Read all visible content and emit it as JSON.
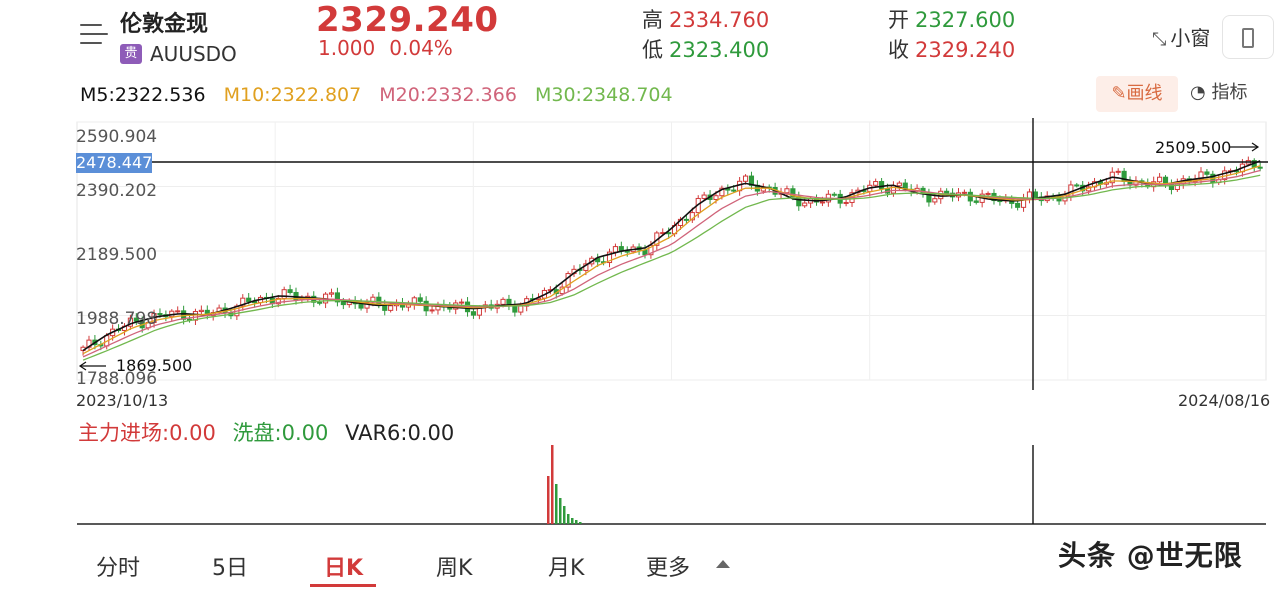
{
  "header": {
    "name": "伦敦金现",
    "badge": "贵",
    "symbol": "AUUSDO",
    "price": "2329.240",
    "change": "1.000",
    "change_pct": "0.04%",
    "high_label": "高",
    "high": "2334.760",
    "low_label": "低",
    "low": "2323.400",
    "open_label": "开",
    "open": "2327.600",
    "close_label": "收",
    "close": "2329.240",
    "small_window_label": "小窗",
    "menu_icon": "menu-icon",
    "orientation_icon": "phone-rotate-icon"
  },
  "ma_legend": {
    "ma5": "M5:2322.536",
    "ma10": "M10:2322.807",
    "ma20": "M20:2332.366",
    "ma30": "M30:2348.704"
  },
  "toolbar": {
    "draw_label": "画线",
    "indicator_label": "指标"
  },
  "chart": {
    "y_labels": [
      "2590.904",
      "2390.202",
      "2189.500",
      "1988.798",
      "1788.096"
    ],
    "current_price_tag": "2478.447",
    "high_marker": "2509.500",
    "low_marker": "1869.500",
    "start_date": "2023/10/13",
    "end_date": "2024/08/16"
  },
  "chart_data": {
    "type": "candlestick",
    "x_range": [
      "2023/10/13",
      "2024/08/16"
    ],
    "ylim": [
      1788.096,
      2590.904
    ],
    "y_ticks": [
      1788.096,
      1988.798,
      2189.5,
      2390.202,
      2590.904
    ],
    "series": [
      {
        "name": "M5",
        "values": [
          1880,
          1930,
          1965,
          1985,
          1995,
          1990,
          2010,
          2035,
          2050,
          2045,
          2040,
          2030,
          2020,
          2025,
          2020,
          2015,
          2010,
          2020,
          2025,
          2060,
          2120,
          2170,
          2190,
          2200,
          2260,
          2330,
          2380,
          2400,
          2385,
          2350,
          2345,
          2355,
          2385,
          2395,
          2370,
          2360,
          2365,
          2350,
          2345,
          2355,
          2365,
          2395,
          2420,
          2405,
          2395,
          2410,
          2420,
          2440,
          2470
        ]
      },
      {
        "name": "M10",
        "values": [
          1870,
          1910,
          1950,
          1975,
          1988,
          1992,
          2005,
          2025,
          2040,
          2042,
          2040,
          2033,
          2024,
          2023,
          2020,
          2017,
          2013,
          2017,
          2022,
          2045,
          2095,
          2145,
          2175,
          2195,
          2235,
          2300,
          2355,
          2385,
          2385,
          2360,
          2350,
          2352,
          2372,
          2388,
          2378,
          2365,
          2363,
          2355,
          2348,
          2350,
          2360,
          2385,
          2408,
          2405,
          2398,
          2405,
          2414,
          2430,
          2455
        ]
      },
      {
        "name": "M20",
        "values": [
          1860,
          1895,
          1930,
          1960,
          1978,
          1988,
          1998,
          2015,
          2030,
          2038,
          2040,
          2036,
          2030,
          2026,
          2022,
          2019,
          2016,
          2017,
          2020,
          2035,
          2070,
          2115,
          2150,
          2178,
          2210,
          2265,
          2320,
          2360,
          2375,
          2365,
          2355,
          2352,
          2362,
          2378,
          2377,
          2368,
          2364,
          2358,
          2352,
          2350,
          2355,
          2372,
          2392,
          2398,
          2396,
          2400,
          2408,
          2420,
          2440
        ]
      },
      {
        "name": "M30",
        "values": [
          1850,
          1880,
          1912,
          1945,
          1968,
          1982,
          1992,
          2005,
          2020,
          2030,
          2035,
          2035,
          2032,
          2029,
          2025,
          2022,
          2019,
          2018,
          2019,
          2028,
          2052,
          2090,
          2125,
          2155,
          2185,
          2230,
          2280,
          2325,
          2350,
          2355,
          2352,
          2350,
          2355,
          2367,
          2370,
          2367,
          2364,
          2360,
          2356,
          2353,
          2354,
          2364,
          2380,
          2390,
          2392,
          2395,
          2400,
          2410,
          2425
        ]
      }
    ]
  },
  "sub_indicator": {
    "main_inflow": "主力进场:0.00",
    "washout": "洗盘:0.00",
    "var6": "VAR6:0.00"
  },
  "tabs": [
    {
      "label": "分时"
    },
    {
      "label": "5日"
    },
    {
      "label": "日K"
    },
    {
      "label": "周K"
    },
    {
      "label": "月K"
    },
    {
      "label": "更多"
    }
  ],
  "watermark": "头条 @世无限",
  "colors": {
    "up": "#d23a3a",
    "down": "#2f9a3c",
    "accent": "#d23a3a",
    "price_tag": "#5b8fd8"
  }
}
